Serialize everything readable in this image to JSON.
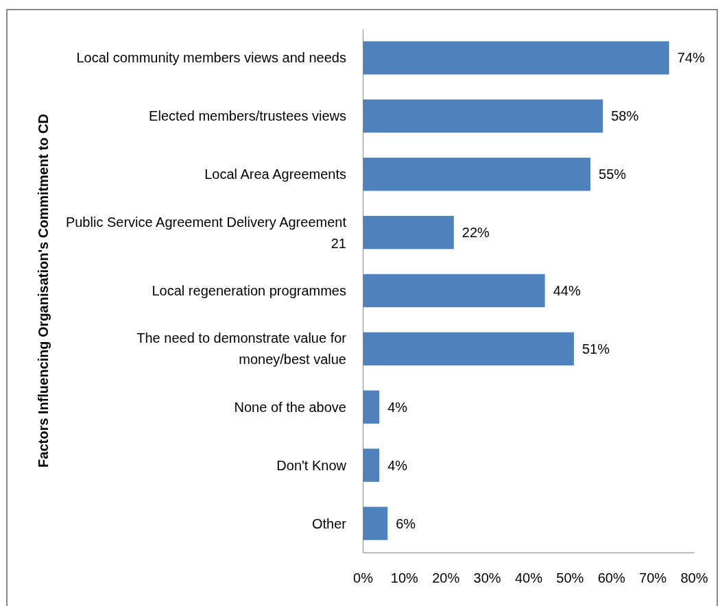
{
  "chart_data": {
    "type": "bar",
    "orientation": "horizontal",
    "ylabel": "Factors Influencing Organisation's Commitment to CD",
    "categories": [
      "Local community members views and needs",
      "Elected members/trustees views",
      "Local Area Agreements",
      "Public Service Agreement Delivery Agreement 21",
      "Local regeneration programmes",
      "The need to demonstrate value for money/best value",
      "None of the above",
      "Don't Know",
      "Other"
    ],
    "values": [
      74,
      58,
      55,
      22,
      44,
      51,
      4,
      4,
      6
    ],
    "value_labels": [
      "74%",
      "58%",
      "55%",
      "22%",
      "44%",
      "51%",
      "4%",
      "4%",
      "6%"
    ],
    "color": "#4f81bd",
    "xlim": [
      0,
      80
    ],
    "xticks": [
      {
        "value": 0,
        "label": "0%"
      },
      {
        "value": 10,
        "label": "10%"
      },
      {
        "value": 20,
        "label": "20%"
      },
      {
        "value": 30,
        "label": "30%"
      },
      {
        "value": 40,
        "label": "40%"
      },
      {
        "value": 50,
        "label": "50%"
      },
      {
        "value": 60,
        "label": "60%"
      },
      {
        "value": 70,
        "label": "70%"
      },
      {
        "value": 80,
        "label": "80%"
      }
    ],
    "grid": false
  }
}
